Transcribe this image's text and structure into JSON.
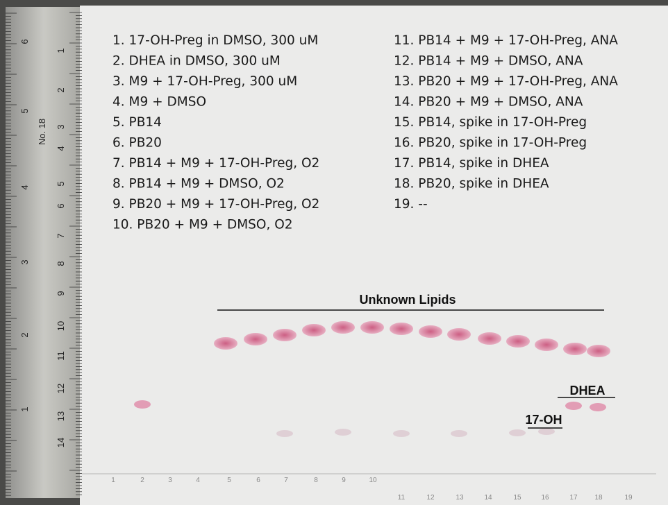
{
  "legend": {
    "left": [
      "1. 17-OH-Preg in DMSO, 300 uM",
      "2. DHEA in DMSO, 300 uM",
      "3. M9 + 17-OH-Preg, 300 uM",
      "4. M9 + DMSO",
      "5. PB14",
      "6. PB20",
      "7. PB14 + M9 + 17-OH-Preg, O2",
      "8. PB14 + M9 + DMSO, O2",
      "9. PB20 + M9 + 17-OH-Preg, O2",
      "10. PB20 + M9 + DMSO, O2"
    ],
    "right": [
      "11. PB14 + M9 + 17-OH-Preg, ANA",
      "12. PB14 + M9 + DMSO, ANA",
      "13. PB20 + M9 + 17-OH-Preg, ANA",
      "14. PB20 + M9 + DMSO, ANA",
      "15. PB14, spike in 17-OH-Preg",
      "16. PB20, spike in 17-OH-Preg",
      "17. PB14, spike in DHEA",
      "18. PB20, spike in DHEA",
      "19. --"
    ]
  },
  "annotations": {
    "unknown": "Unknown Lipids",
    "dhea": "DHEA",
    "oh17": "17-OH"
  },
  "lanes": [
    "1",
    "2",
    "3",
    "4",
    "5",
    "6",
    "7",
    "8",
    "9",
    "10",
    "11",
    "12",
    "13",
    "14",
    "15",
    "16",
    "17",
    "18",
    "19"
  ],
  "ruler": {
    "cm": [
      "1",
      "2",
      "3",
      "4",
      "5",
      "6",
      "7",
      "8",
      "9",
      "10",
      "11",
      "12",
      "13",
      "14"
    ],
    "inch": [
      "6",
      "5",
      "4",
      "3",
      "2",
      "1"
    ],
    "model": "No. 18"
  }
}
